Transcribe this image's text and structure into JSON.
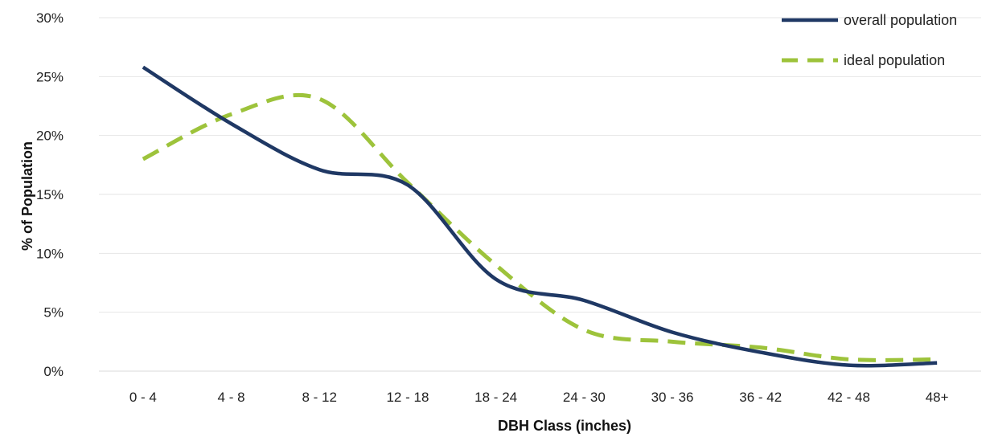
{
  "chart_data": {
    "type": "line",
    "title": "",
    "xlabel": "DBH Class (inches)",
    "ylabel": "% of Population",
    "categories": [
      "0 - 4",
      "4 - 8",
      "8 - 12",
      "12 - 18",
      "18 - 24",
      "24 - 30",
      "30 - 36",
      "36 - 42",
      "42 - 48",
      "48+"
    ],
    "ylim": [
      0,
      30
    ],
    "yticks": [
      "0%",
      "5%",
      "10%",
      "15%",
      "20%",
      "25%",
      "30%"
    ],
    "grid": true,
    "legend_position": "top-right",
    "series": [
      {
        "name": "overall population",
        "values": [
          25.8,
          21.0,
          17.1,
          15.8,
          7.8,
          6.0,
          3.3,
          1.6,
          0.5,
          0.7
        ],
        "color": "#1f3864",
        "style": "solid"
      },
      {
        "name": "ideal population",
        "values": [
          18.0,
          21.8,
          23.1,
          16.0,
          9.0,
          3.5,
          2.5,
          2.0,
          1.0,
          1.0
        ],
        "color": "#9dc33b",
        "style": "dashed"
      }
    ]
  }
}
